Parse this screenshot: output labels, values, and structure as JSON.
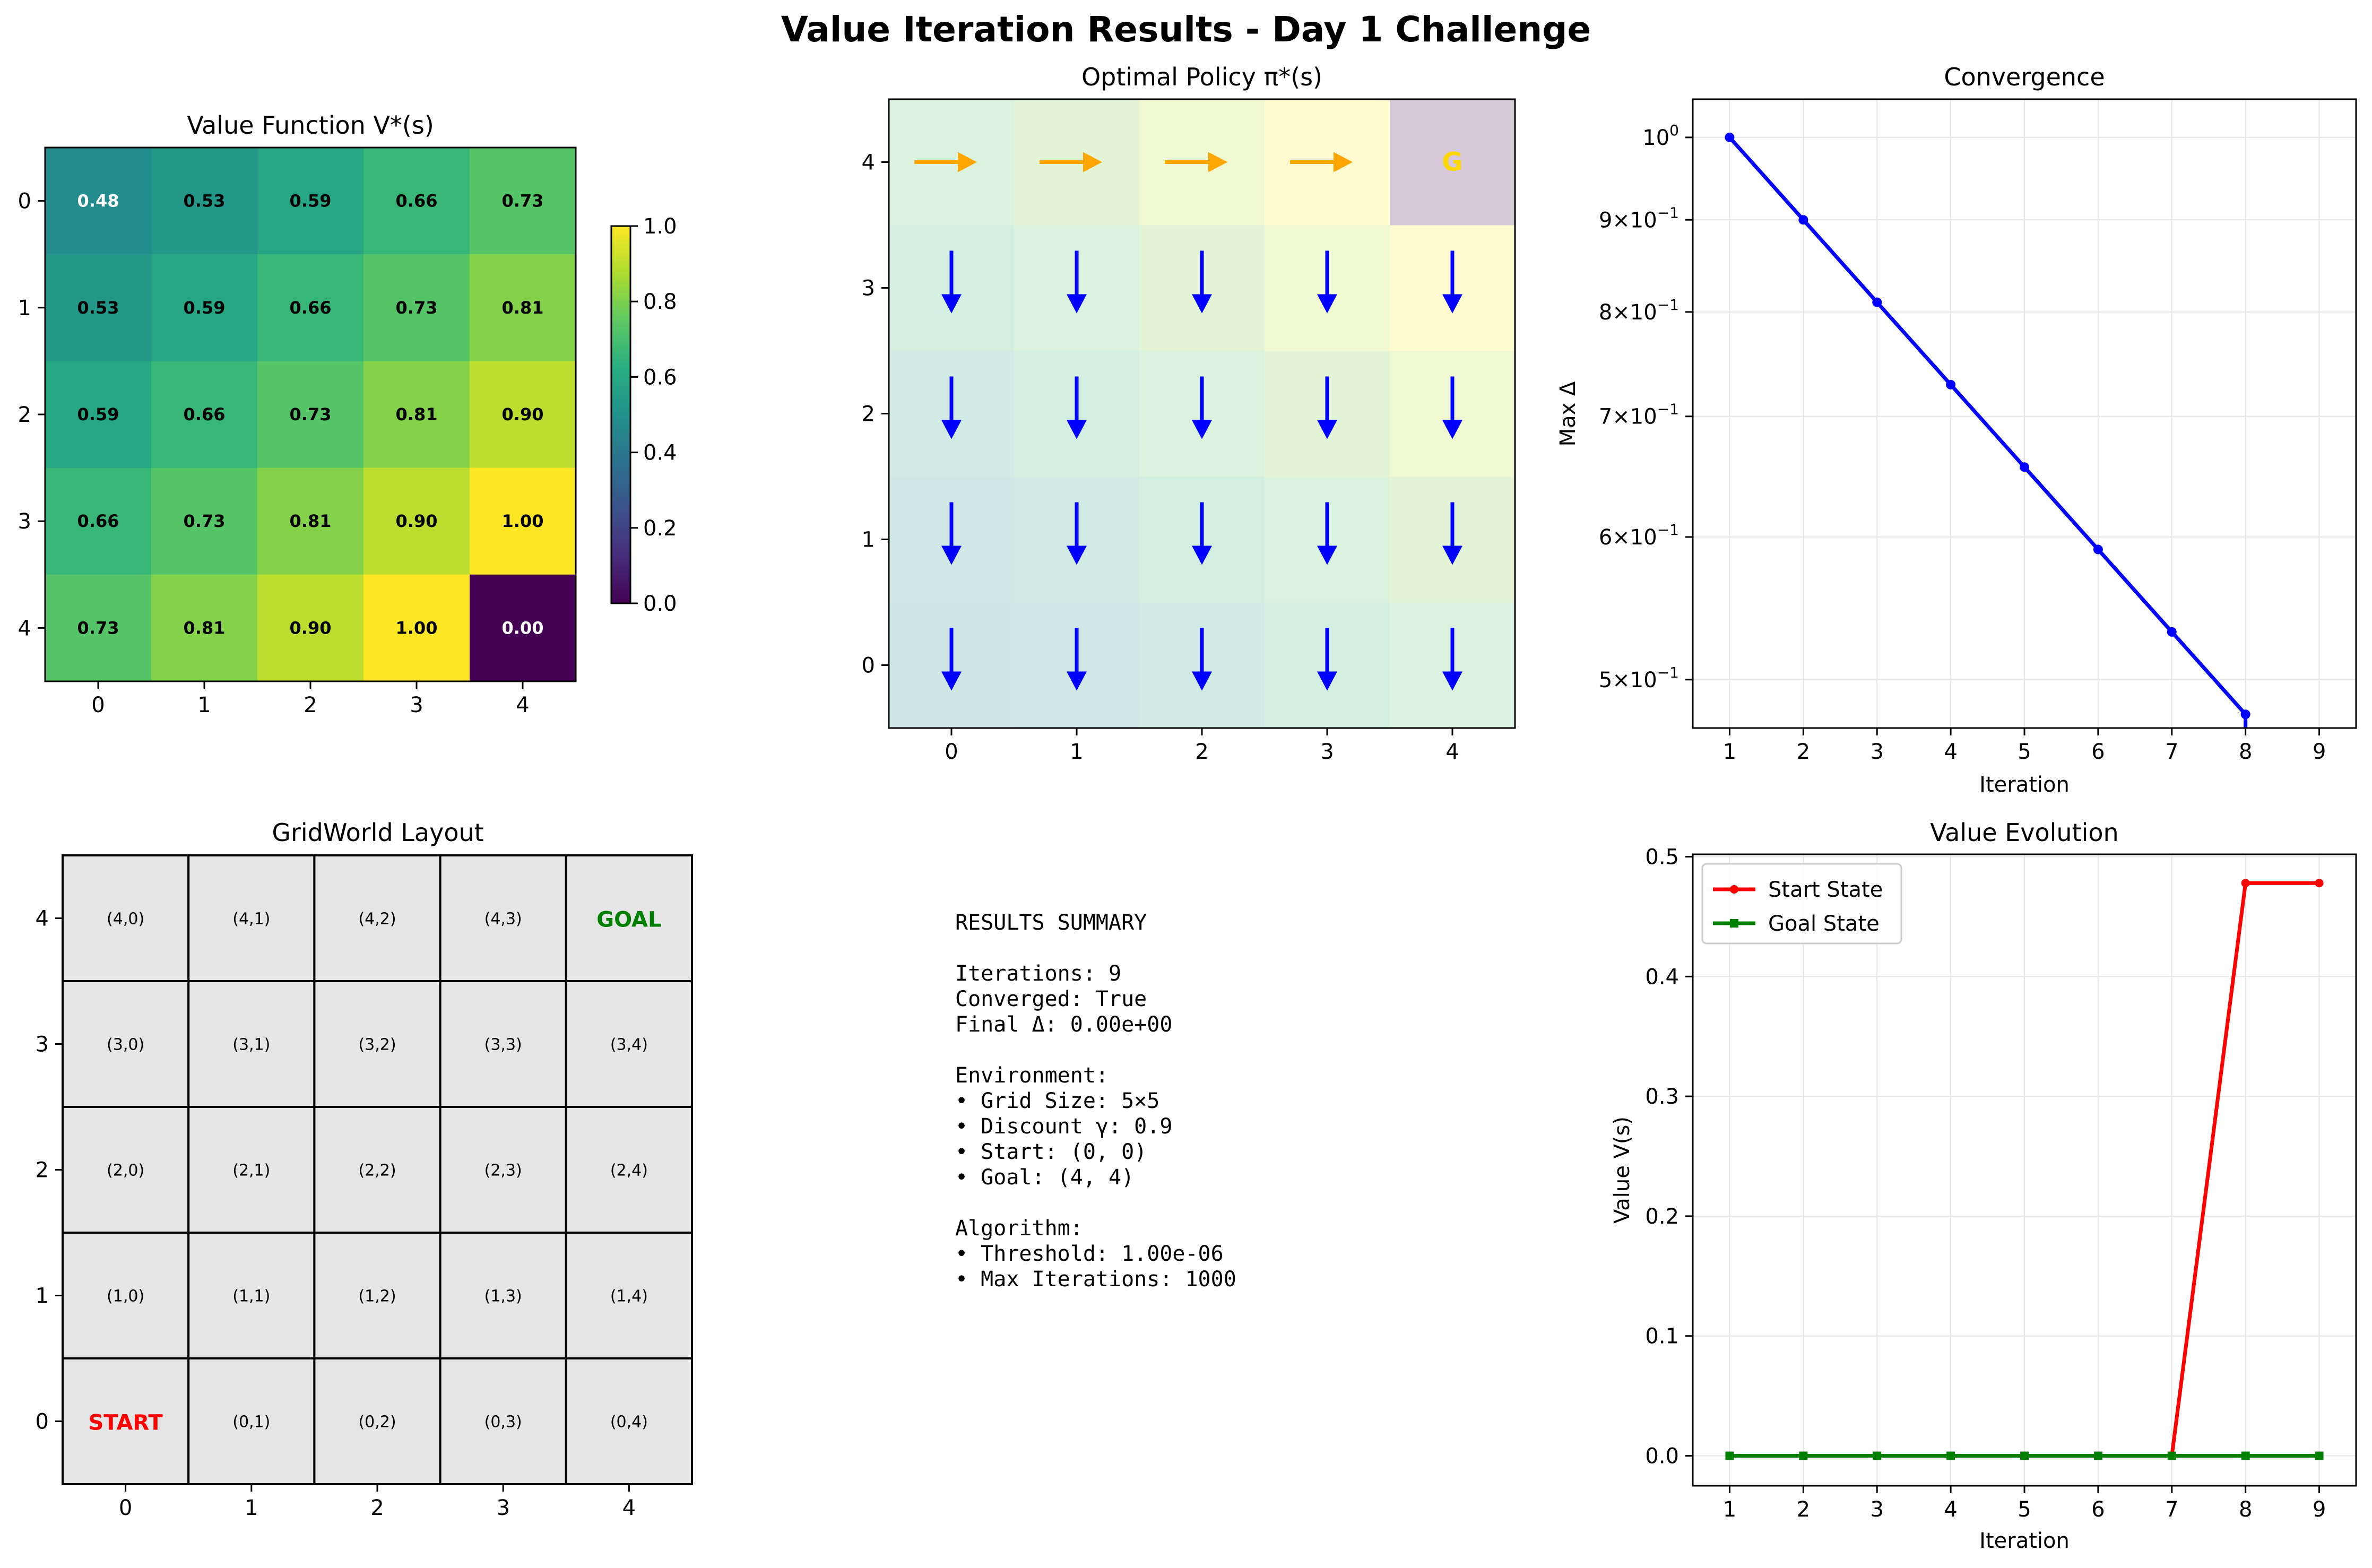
{
  "suptitle": "Value Iteration Results - Day 1 Challenge",
  "colors": {
    "start_series": "#ff0000",
    "goal_series": "#008000",
    "convergence": "#0000ff",
    "policy_down": "#0000ff",
    "policy_right": "#ffa500",
    "goal_text_policy": "#ffd700",
    "grid_cell": "#e5e5e5",
    "start_label": "#ff0000",
    "goal_label": "#008000"
  },
  "chart_data": [
    {
      "id": "value_function",
      "type": "heatmap",
      "title": "Value Function V*(s)",
      "xlabel": "",
      "ylabel": "",
      "x_ticks": [
        "0",
        "1",
        "2",
        "3",
        "4"
      ],
      "y_ticks": [
        "0",
        "1",
        "2",
        "3",
        "4"
      ],
      "colormap": "viridis",
      "colorbar_range": [
        0,
        1
      ],
      "colorbar_ticks": [
        "0.0",
        "0.2",
        "0.4",
        "0.6",
        "0.8",
        "1.0"
      ],
      "matrix": [
        [
          0.48,
          0.53,
          0.59,
          0.66,
          0.73
        ],
        [
          0.53,
          0.59,
          0.66,
          0.73,
          0.81
        ],
        [
          0.59,
          0.66,
          0.73,
          0.81,
          0.9
        ],
        [
          0.66,
          0.73,
          0.81,
          0.9,
          1.0
        ],
        [
          0.73,
          0.81,
          0.9,
          1.0,
          0.0
        ]
      ],
      "cell_labels": [
        [
          "0.48",
          "0.53",
          "0.59",
          "0.66",
          "0.73"
        ],
        [
          "0.53",
          "0.59",
          "0.66",
          "0.73",
          "0.81"
        ],
        [
          "0.59",
          "0.66",
          "0.73",
          "0.81",
          "0.90"
        ],
        [
          "0.66",
          "0.73",
          "0.81",
          "0.90",
          "1.00"
        ],
        [
          "0.73",
          "0.81",
          "0.90",
          "1.00",
          "0.00"
        ]
      ]
    },
    {
      "id": "optimal_policy",
      "type": "heatmap",
      "title": "Optimal Policy π*(s)",
      "xlabel": "",
      "ylabel": "",
      "x_ticks": [
        "0",
        "1",
        "2",
        "3",
        "4"
      ],
      "y_ticks": [
        "0",
        "1",
        "2",
        "3",
        "4"
      ],
      "colormap": "viridis (faded background)",
      "rows_bottom_to_top": [
        0,
        1,
        2,
        3,
        4
      ],
      "actions": [
        [
          "down",
          "down",
          "down",
          "down",
          "down"
        ],
        [
          "down",
          "down",
          "down",
          "down",
          "down"
        ],
        [
          "down",
          "down",
          "down",
          "down",
          "down"
        ],
        [
          "down",
          "down",
          "down",
          "down",
          "down"
        ],
        [
          "right",
          "right",
          "right",
          "right",
          "goal"
        ]
      ],
      "goal_label": "G"
    },
    {
      "id": "convergence",
      "type": "line",
      "title": "Convergence",
      "xlabel": "Iteration",
      "ylabel": "Max Δ",
      "y_scale": "log",
      "x": [
        1,
        2,
        3,
        4,
        5,
        6,
        7,
        8
      ],
      "y": [
        1.0,
        0.9,
        0.81,
        0.729,
        0.6561,
        0.59049,
        0.531441,
        0.4782969
      ],
      "xlim": [
        0.5,
        9.5
      ],
      "ylim": [
        0.47,
        1.05
      ],
      "x_ticks": [
        "1",
        "2",
        "3",
        "4",
        "5",
        "6",
        "7",
        "8",
        "9"
      ],
      "y_ticks": [
        {
          "base": "10",
          "exp": "0",
          "mantissa": "",
          "value": 1.0
        },
        {
          "base": "10",
          "exp": "−1",
          "mantissa": "9",
          "value": 0.9
        },
        {
          "base": "10",
          "exp": "−1",
          "mantissa": "8",
          "value": 0.8
        },
        {
          "base": "10",
          "exp": "−1",
          "mantissa": "7",
          "value": 0.7
        },
        {
          "base": "10",
          "exp": "−1",
          "mantissa": "6",
          "value": 0.6
        },
        {
          "base": "10",
          "exp": "−1",
          "mantissa": "5",
          "value": 0.5
        }
      ],
      "grid": true
    },
    {
      "id": "gridworld_layout",
      "type": "table",
      "title": "GridWorld Layout",
      "x_ticks": [
        "0",
        "1",
        "2",
        "3",
        "4"
      ],
      "y_ticks": [
        "0",
        "1",
        "2",
        "3",
        "4"
      ],
      "rows_bottom_to_top": [
        [
          "START",
          "(0,1)",
          "(0,2)",
          "(0,3)",
          "(0,4)"
        ],
        [
          "(1,0)",
          "(1,1)",
          "(1,2)",
          "(1,3)",
          "(1,4)"
        ],
        [
          "(2,0)",
          "(2,1)",
          "(2,2)",
          "(2,3)",
          "(2,4)"
        ],
        [
          "(3,0)",
          "(3,1)",
          "(3,2)",
          "(3,3)",
          "(3,4)"
        ],
        [
          "(4,0)",
          "(4,1)",
          "(4,2)",
          "(4,3)",
          "GOAL"
        ]
      ]
    },
    {
      "id": "value_evolution",
      "type": "line",
      "title": "Value Evolution",
      "xlabel": "Iteration",
      "ylabel": "Value V(s)",
      "x": [
        1,
        2,
        3,
        4,
        5,
        6,
        7,
        8,
        9
      ],
      "series": [
        {
          "name": "Start State",
          "values": [
            0,
            0,
            0,
            0,
            0,
            0,
            0,
            0.478,
            0.478
          ]
        },
        {
          "name": "Goal State",
          "values": [
            0,
            0,
            0,
            0,
            0,
            0,
            0,
            0,
            0
          ]
        }
      ],
      "xlim": [
        0.5,
        9.5
      ],
      "ylim": [
        -0.025,
        0.502
      ],
      "x_ticks": [
        "1",
        "2",
        "3",
        "4",
        "5",
        "6",
        "7",
        "8",
        "9"
      ],
      "y_ticks": [
        "0.0",
        "0.1",
        "0.2",
        "0.3",
        "0.4",
        "0.5"
      ],
      "legend": "top-left",
      "grid": true
    }
  ],
  "summary": {
    "lines": [
      "RESULTS SUMMARY",
      "",
      "Iterations: 9",
      "Converged: True",
      "Final Δ: 0.00e+00",
      "",
      "Environment:",
      "• Grid Size: 5×5",
      "• Discount γ: 0.9",
      "• Start: (0, 0)",
      "• Goal: (4, 4)",
      "",
      "Algorithm:",
      "• Threshold: 1.00e-06",
      "• Max Iterations: 1000"
    ]
  }
}
